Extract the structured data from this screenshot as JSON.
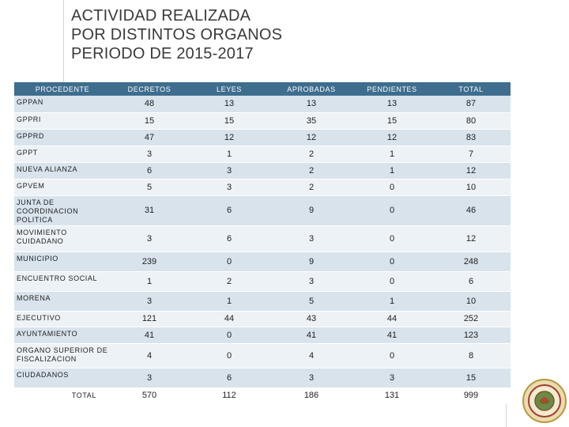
{
  "title": {
    "line1": "ACTIVIDAD REALIZADA",
    "line2": "POR DISTINTOS ORGANOS",
    "line3": "PERIODO DE 2015-2017"
  },
  "table": {
    "headers": [
      "PROCEDENTE",
      "DECRETOS",
      "LEYES",
      "APROBADAS",
      "PENDIENTES",
      "TOTAL"
    ],
    "rows": [
      {
        "name": "GPPAN",
        "decretos": "48",
        "leyes": "13",
        "aprobadas": "13",
        "pendientes": "13",
        "total": "87"
      },
      {
        "name": "GPPRI",
        "decretos": "15",
        "leyes": "15",
        "aprobadas": "35",
        "pendientes": "15",
        "total": "80"
      },
      {
        "name": "GPPRD",
        "decretos": "47",
        "leyes": "12",
        "aprobadas": "12",
        "pendientes": "12",
        "total": "83"
      },
      {
        "name": "GPPT",
        "decretos": "3",
        "leyes": "1",
        "aprobadas": "2",
        "pendientes": "1",
        "total": "7"
      },
      {
        "name": "NUEVA ALIANZA",
        "decretos": "6",
        "leyes": "3",
        "aprobadas": "2",
        "pendientes": "1",
        "total": "12"
      },
      {
        "name": "GPVEM",
        "decretos": "5",
        "leyes": "3",
        "aprobadas": "2",
        "pendientes": "0",
        "total": "10"
      },
      {
        "name": "JUNTA DE COORDINACION POLITICA",
        "decretos": "31",
        "leyes": "6",
        "aprobadas": "9",
        "pendientes": "0",
        "total": "46"
      },
      {
        "name": "MOVIMIENTO CUIDADANO",
        "decretos": "3",
        "leyes": "6",
        "aprobadas": "3",
        "pendientes": "0",
        "total": "12"
      },
      {
        "name": "MUNICIPIO",
        "decretos": "239",
        "leyes": "0",
        "aprobadas": "9",
        "pendientes": "0",
        "total": "248"
      },
      {
        "name": "ENCUENTRO SOCIAL",
        "decretos": "1",
        "leyes": "2",
        "aprobadas": "3",
        "pendientes": "0",
        "total": "6"
      },
      {
        "name": "MORENA",
        "decretos": "3",
        "leyes": "1",
        "aprobadas": "5",
        "pendientes": "1",
        "total": "10"
      },
      {
        "name": "EJECUTIVO",
        "decretos": "121",
        "leyes": "44",
        "aprobadas": "43",
        "pendientes": "44",
        "total": "252"
      },
      {
        "name": "AYUNTAMIENTO",
        "decretos": "41",
        "leyes": "0",
        "aprobadas": "41",
        "pendientes": "41",
        "total": "123"
      },
      {
        "name": "ORGANO SUPERIOR DE FISCALIZACION",
        "decretos": "4",
        "leyes": "0",
        "aprobadas": "4",
        "pendientes": "0",
        "total": "8"
      },
      {
        "name": "CIUDADANOS",
        "decretos": "3",
        "leyes": "6",
        "aprobadas": "3",
        "pendientes": "3",
        "total": "15"
      }
    ],
    "total": {
      "name": "TOTAL",
      "decretos": "570",
      "leyes": "112",
      "aprobadas": "186",
      "pendientes": "131",
      "total": "999"
    }
  },
  "colors": {
    "header_bg": "#3e6d8e",
    "row_odd": "#d8e3ec",
    "row_even": "#edf2f6"
  },
  "icons": {
    "seal": "congress-seal-icon"
  }
}
